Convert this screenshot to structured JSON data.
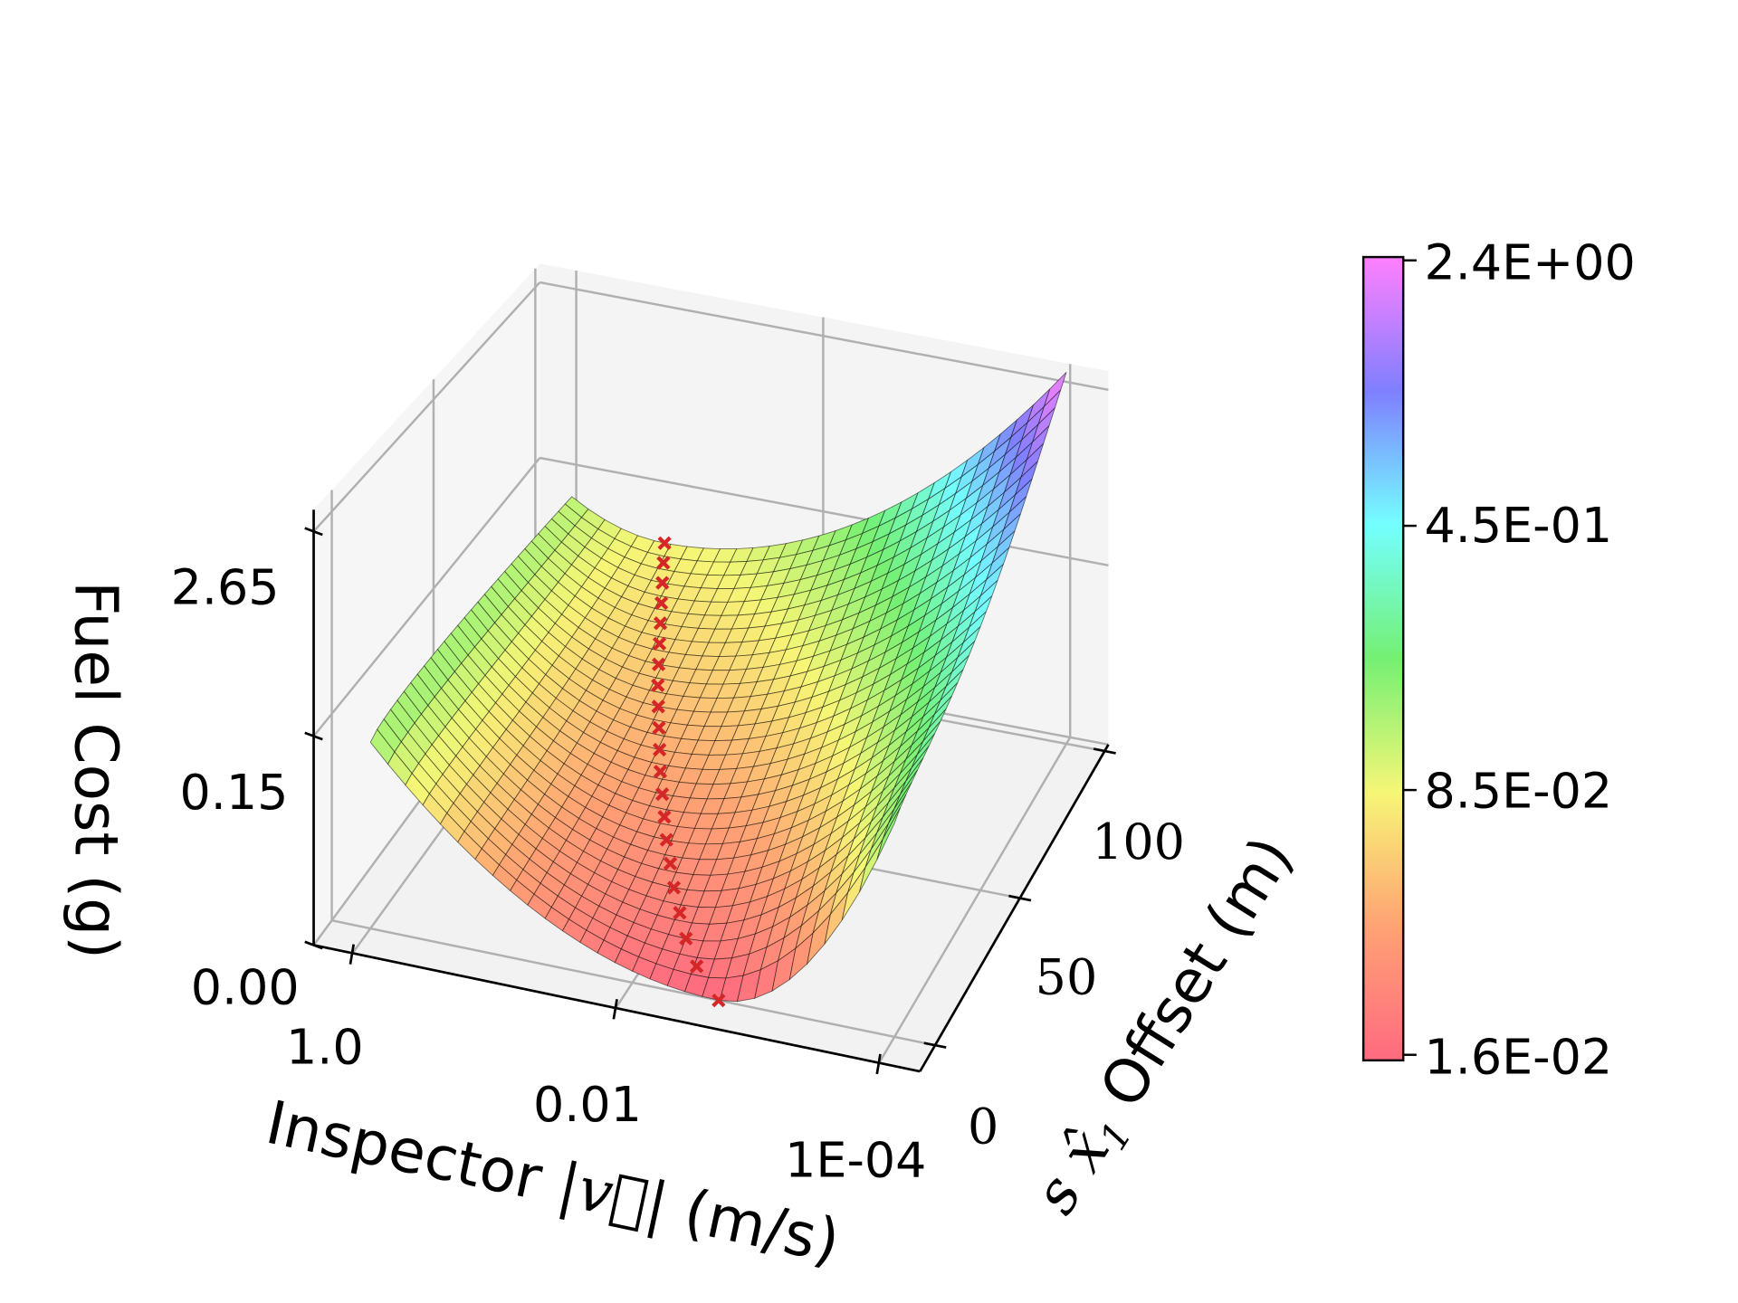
{
  "chart_data": {
    "type": "surface3d",
    "title": "",
    "x_axis": {
      "label_text": "Inspector",
      "label_math": "|v⃗|",
      "label_unit": "(m/s)",
      "scale": "log",
      "lim_log10": [
        0.295,
        -4.31
      ],
      "ticks": [
        {
          "label": "1.0",
          "value": 1.0
        },
        {
          "label": "0.01",
          "value": 0.01
        },
        {
          "label": "1E-04",
          "value": 0.0001
        }
      ]
    },
    "y_axis": {
      "label_math": "s x̂",
      "label_sub": "1",
      "label_text": "Offset (m)",
      "lim": [
        -8.9,
        102.2
      ],
      "ticks": [
        {
          "label": "0",
          "value": 0
        },
        {
          "label": "50",
          "value": 50
        },
        {
          "label": "100",
          "value": 100
        }
      ]
    },
    "z_axis": {
      "label": "Fuel Cost (g)",
      "cost_lim_log": [
        0.0158,
        2.5
      ],
      "ticks": [
        {
          "label": "0.00",
          "level": 0.0
        },
        {
          "label": "0.15",
          "level": 0.48
        },
        {
          "label": "2.65",
          "level": 0.95
        }
      ]
    },
    "colorbar": {
      "scale": "log",
      "range": [
        0.016,
        2.4
      ],
      "ticks": [
        {
          "label": "2.4E+00",
          "value": 2.4
        },
        {
          "label": "4.5E-01",
          "value": 0.45
        },
        {
          "label": "8.5E-02",
          "value": 0.085
        },
        {
          "label": "1.6E-02",
          "value": 0.016
        }
      ],
      "colormap": [
        "#ff6a80",
        "#ffa274",
        "#f6f676",
        "#74f074",
        "#74ffff",
        "#7f7fff",
        "#ff80ff"
      ]
    },
    "surface": {
      "velocity_range": [
        0.0001,
        1.0
      ],
      "offset_range": [
        0,
        100
      ],
      "grid": [
        30,
        30
      ],
      "cost_at_corners": {
        "v1_offset0": 0.14,
        "v1e-4_offset0": 0.2,
        "v1_offset100": 0.13,
        "v1e-4_offset100": 2.4
      },
      "min_cost_offset0": 0.016,
      "min_cost_offset100": 0.085
    },
    "optimal_points": {
      "marker": "x",
      "color": "#d62728",
      "offset": [
        0,
        5,
        10,
        15,
        20,
        25,
        30,
        35,
        40,
        45,
        50,
        55,
        60,
        65,
        70,
        75,
        80,
        85,
        90,
        95,
        100
      ],
      "velocity": [
        0.0022,
        0.0038,
        0.0054,
        0.0071,
        0.0093,
        0.0117,
        0.0148,
        0.0182,
        0.0224,
        0.0275,
        0.0331,
        0.0398,
        0.0479,
        0.0575,
        0.0676,
        0.0794,
        0.0933,
        0.1096,
        0.1288,
        0.1514,
        0.1778
      ],
      "cost": [
        0.0158,
        0.0185,
        0.0207,
        0.0229,
        0.0252,
        0.0276,
        0.0301,
        0.0327,
        0.0355,
        0.0385,
        0.0416,
        0.045,
        0.0484,
        0.0521,
        0.0561,
        0.0603,
        0.0647,
        0.0693,
        0.0743,
        0.0796,
        0.0851
      ]
    }
  }
}
